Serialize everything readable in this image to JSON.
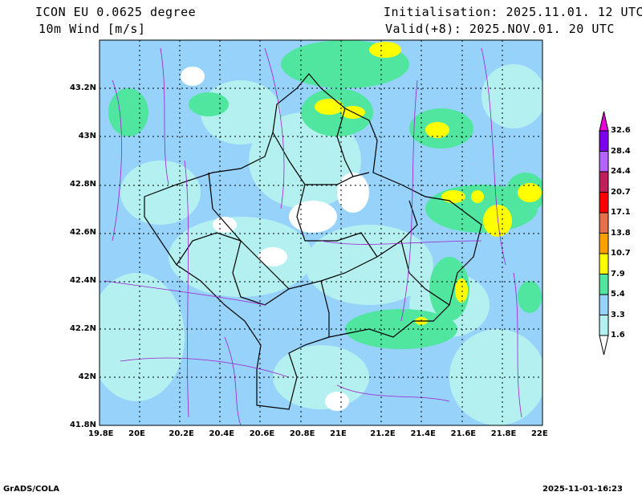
{
  "header": {
    "model": "ICON EU 0.0625 degree",
    "variable": "10m Wind [m/s]",
    "init": "Initialisation: 2025.11.01. 12 UTC",
    "valid": "Valid(+8): 2025.NOV.01. 20 UTC"
  },
  "map": {
    "lon_labels": [
      "19.8E",
      "20E",
      "20.2E",
      "20.4E",
      "20.6E",
      "20.8E",
      "21E",
      "21.2E",
      "21.4E",
      "21.6E",
      "21.8E",
      "22E"
    ],
    "lat_labels": [
      "43.2N",
      "43N",
      "42.8N",
      "42.6N",
      "42.4N",
      "42.2N",
      "42N",
      "41.8N"
    ],
    "lon_range": [
      19.8,
      22.0
    ],
    "lat_range": [
      41.8,
      43.36
    ]
  },
  "legend": {
    "levels": [
      "1.6",
      "3.3",
      "5.4",
      "7.9",
      "10.7",
      "13.8",
      "17.1",
      "20.7",
      "24.4",
      "28.4",
      "32.6"
    ],
    "colors": [
      "#b4f0f0",
      "#96d2fa",
      "#50e6a0",
      "#ffff00",
      "#ffa000",
      "#e6704a",
      "#ff0000",
      "#c0205a",
      "#b464fa",
      "#8200f0"
    ],
    "over_color": "#e600dc",
    "under_color": "#ffffff"
  },
  "footer": {
    "left": "GrADS/COLA",
    "right": "2025-11-01-16:23"
  }
}
